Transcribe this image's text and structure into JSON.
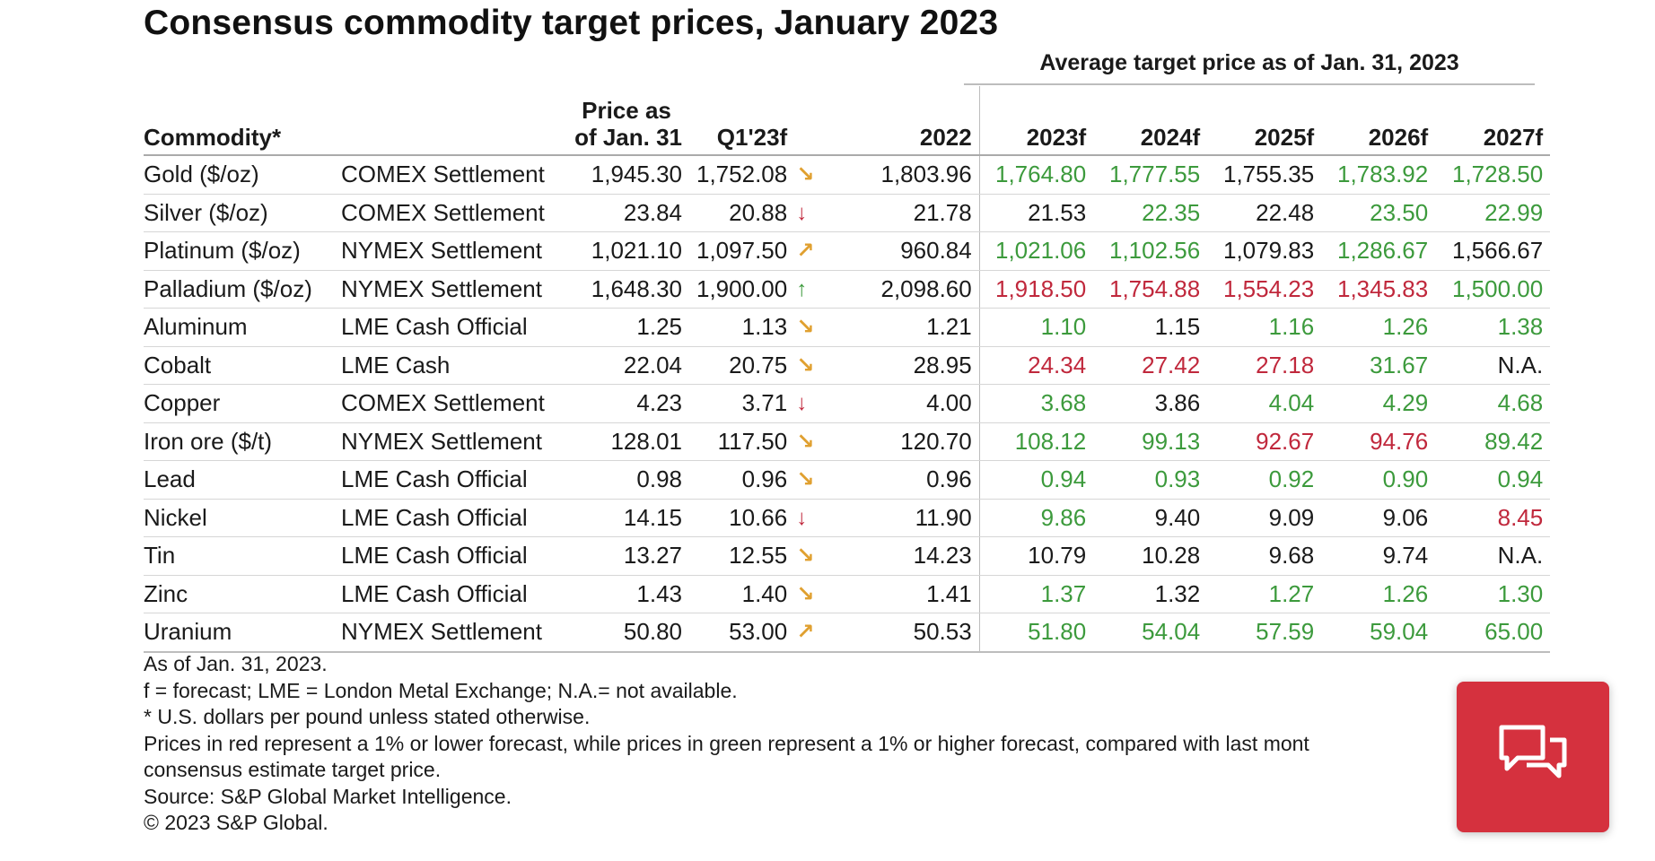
{
  "title": "Consensus commodity target prices, January 2023",
  "group_header": "Average target price as of Jan. 31, 2023",
  "columns": {
    "commodity": "Commodity*",
    "price_line1": "Price as",
    "price_line2": "of Jan. 31",
    "q1": "Q1'23f",
    "y2022": "2022",
    "y2023": "2023f",
    "y2024": "2024f",
    "y2025": "2025f",
    "y2026": "2026f",
    "y2027": "2027f"
  },
  "rows": [
    {
      "commodity": "Gold ($/oz)",
      "exchange": "COMEX Settlement",
      "price": "1,945.30",
      "q1": "1,752.08",
      "q1_trend": "down-right",
      "y2022": "1,803.96",
      "forecasts": [
        {
          "v": "1,764.80",
          "c": "green"
        },
        {
          "v": "1,777.55",
          "c": "green"
        },
        {
          "v": "1,755.35",
          "c": "black"
        },
        {
          "v": "1,783.92",
          "c": "green"
        },
        {
          "v": "1,728.50",
          "c": "green"
        }
      ]
    },
    {
      "commodity": "Silver ($/oz)",
      "exchange": "COMEX Settlement",
      "price": "23.84",
      "q1": "20.88",
      "q1_trend": "down",
      "y2022": "21.78",
      "forecasts": [
        {
          "v": "21.53",
          "c": "black"
        },
        {
          "v": "22.35",
          "c": "green"
        },
        {
          "v": "22.48",
          "c": "black"
        },
        {
          "v": "23.50",
          "c": "green"
        },
        {
          "v": "22.99",
          "c": "green"
        }
      ]
    },
    {
      "commodity": "Platinum ($/oz)",
      "exchange": "NYMEX Settlement",
      "price": "1,021.10",
      "q1": "1,097.50",
      "q1_trend": "up-right",
      "y2022": "960.84",
      "forecasts": [
        {
          "v": "1,021.06",
          "c": "green"
        },
        {
          "v": "1,102.56",
          "c": "green"
        },
        {
          "v": "1,079.83",
          "c": "black"
        },
        {
          "v": "1,286.67",
          "c": "green"
        },
        {
          "v": "1,566.67",
          "c": "black"
        }
      ]
    },
    {
      "commodity": "Palladium ($/oz)",
      "exchange": "NYMEX Settlement",
      "price": "1,648.30",
      "q1": "1,900.00",
      "q1_trend": "up",
      "y2022": "2,098.60",
      "forecasts": [
        {
          "v": "1,918.50",
          "c": "red"
        },
        {
          "v": "1,754.88",
          "c": "red"
        },
        {
          "v": "1,554.23",
          "c": "red"
        },
        {
          "v": "1,345.83",
          "c": "red"
        },
        {
          "v": "1,500.00",
          "c": "green"
        }
      ]
    },
    {
      "commodity": "Aluminum",
      "exchange": "LME Cash Official",
      "price": "1.25",
      "q1": "1.13",
      "q1_trend": "down-right",
      "y2022": "1.21",
      "forecasts": [
        {
          "v": "1.10",
          "c": "green"
        },
        {
          "v": "1.15",
          "c": "black"
        },
        {
          "v": "1.16",
          "c": "green"
        },
        {
          "v": "1.26",
          "c": "green"
        },
        {
          "v": "1.38",
          "c": "green"
        }
      ]
    },
    {
      "commodity": "Cobalt",
      "exchange": "LME Cash",
      "price": "22.04",
      "q1": "20.75",
      "q1_trend": "down-right",
      "y2022": "28.95",
      "forecasts": [
        {
          "v": "24.34",
          "c": "red"
        },
        {
          "v": "27.42",
          "c": "red"
        },
        {
          "v": "27.18",
          "c": "red"
        },
        {
          "v": "31.67",
          "c": "green"
        },
        {
          "v": "N.A.",
          "c": "black"
        }
      ]
    },
    {
      "commodity": "Copper",
      "exchange": "COMEX Settlement",
      "price": "4.23",
      "q1": "3.71",
      "q1_trend": "down",
      "y2022": "4.00",
      "forecasts": [
        {
          "v": "3.68",
          "c": "green"
        },
        {
          "v": "3.86",
          "c": "black"
        },
        {
          "v": "4.04",
          "c": "green"
        },
        {
          "v": "4.29",
          "c": "green"
        },
        {
          "v": "4.68",
          "c": "green"
        }
      ]
    },
    {
      "commodity": "Iron ore ($/t)",
      "exchange": "NYMEX Settlement",
      "price": "128.01",
      "q1": "117.50",
      "q1_trend": "down-right",
      "y2022": "120.70",
      "forecasts": [
        {
          "v": "108.12",
          "c": "green"
        },
        {
          "v": "99.13",
          "c": "green"
        },
        {
          "v": "92.67",
          "c": "red"
        },
        {
          "v": "94.76",
          "c": "red"
        },
        {
          "v": "89.42",
          "c": "green"
        }
      ]
    },
    {
      "commodity": "Lead",
      "exchange": "LME Cash Official",
      "price": "0.98",
      "q1": "0.96",
      "q1_trend": "down-right",
      "y2022": "0.96",
      "forecasts": [
        {
          "v": "0.94",
          "c": "green"
        },
        {
          "v": "0.93",
          "c": "green"
        },
        {
          "v": "0.92",
          "c": "green"
        },
        {
          "v": "0.90",
          "c": "green"
        },
        {
          "v": "0.94",
          "c": "green"
        }
      ]
    },
    {
      "commodity": "Nickel",
      "exchange": "LME Cash Official",
      "price": "14.15",
      "q1": "10.66",
      "q1_trend": "down",
      "y2022": "11.90",
      "forecasts": [
        {
          "v": "9.86",
          "c": "green"
        },
        {
          "v": "9.40",
          "c": "black"
        },
        {
          "v": "9.09",
          "c": "black"
        },
        {
          "v": "9.06",
          "c": "black"
        },
        {
          "v": "8.45",
          "c": "red"
        }
      ]
    },
    {
      "commodity": "Tin",
      "exchange": "LME Cash Official",
      "price": "13.27",
      "q1": "12.55",
      "q1_trend": "down-right",
      "y2022": "14.23",
      "forecasts": [
        {
          "v": "10.79",
          "c": "black"
        },
        {
          "v": "10.28",
          "c": "black"
        },
        {
          "v": "9.68",
          "c": "black"
        },
        {
          "v": "9.74",
          "c": "black"
        },
        {
          "v": "N.A.",
          "c": "black"
        }
      ]
    },
    {
      "commodity": "Zinc",
      "exchange": "LME Cash Official",
      "price": "1.43",
      "q1": "1.40",
      "q1_trend": "down-right",
      "y2022": "1.41",
      "forecasts": [
        {
          "v": "1.37",
          "c": "green"
        },
        {
          "v": "1.32",
          "c": "black"
        },
        {
          "v": "1.27",
          "c": "green"
        },
        {
          "v": "1.26",
          "c": "green"
        },
        {
          "v": "1.30",
          "c": "green"
        }
      ]
    },
    {
      "commodity": "Uranium",
      "exchange": "NYMEX Settlement",
      "price": "50.80",
      "q1": "53.00",
      "q1_trend": "up-right",
      "y2022": "50.53",
      "forecasts": [
        {
          "v": "51.80",
          "c": "green"
        },
        {
          "v": "54.04",
          "c": "green"
        },
        {
          "v": "57.59",
          "c": "green"
        },
        {
          "v": "59.04",
          "c": "green"
        },
        {
          "v": "65.00",
          "c": "green"
        }
      ]
    }
  ],
  "notes": [
    "As of Jan. 31, 2023.",
    "f = forecast; LME = London Metal Exchange; N.A.= not available.",
    "* U.S. dollars per pound unless stated otherwise.",
    "Prices in red represent a 1% or lower forecast, while prices in green represent a 1% or higher forecast, compared with last mont",
    "consensus estimate target price.",
    "Source: S&P Global Market Intelligence.",
    "© 2023 S&P Global."
  ],
  "chat_button": {
    "icon": "chat-bubbles-icon"
  },
  "colors": {
    "green": "#3c9a3c",
    "red": "#c0283c",
    "amber": "#e0a030",
    "chat": "#d5313e"
  }
}
